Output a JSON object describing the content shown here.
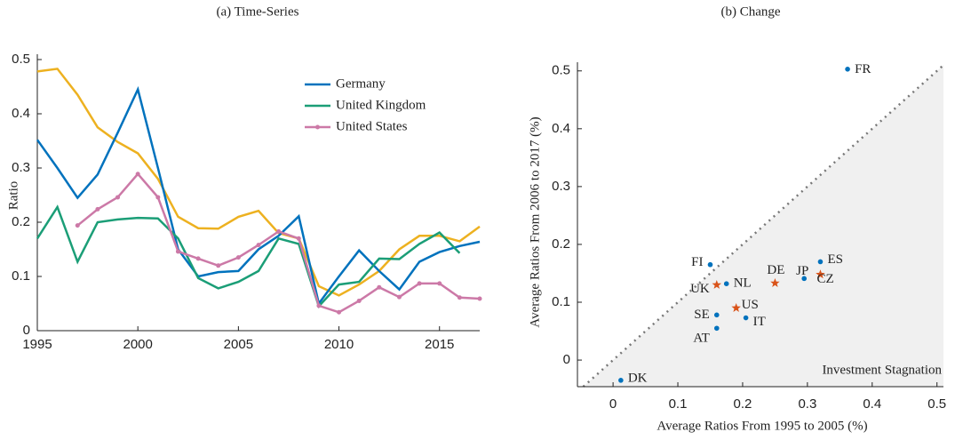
{
  "chart_data": [
    {
      "type": "line",
      "title": "(a) Time-Series",
      "y_label": "Ratio",
      "x": [
        1995,
        1996,
        1997,
        1998,
        1999,
        2000,
        2001,
        2002,
        2003,
        2004,
        2005,
        2006,
        2007,
        2008,
        2009,
        2010,
        2011,
        2012,
        2013,
        2014,
        2015,
        2016,
        2017
      ],
      "xlim": [
        1995,
        2017
      ],
      "xticks": [
        1995,
        2000,
        2005,
        2010,
        2015
      ],
      "ylim": [
        0,
        0.5
      ],
      "yticks": [
        0,
        0.1,
        0.2,
        0.3,
        0.4,
        0.5
      ],
      "legend": "upper-right",
      "series": [
        {
          "color": "#edb120",
          "values": [
            0.478,
            0.483,
            0.435,
            0.375,
            0.348,
            0.327,
            0.28,
            0.21,
            0.189,
            0.188,
            0.21,
            0.221,
            0.18,
            0.17,
            0.082,
            0.065,
            0.085,
            0.11,
            0.15,
            0.175,
            0.175,
            0.165,
            0.192
          ]
        },
        {
          "name": "Germany",
          "color": "#0072bd",
          "values": [
            0.352,
            0.3,
            0.245,
            0.288,
            0.365,
            0.445,
            0.3,
            0.15,
            0.1,
            0.108,
            0.11,
            0.15,
            0.175,
            0.211,
            0.05,
            0.1,
            0.148,
            0.11,
            0.076,
            0.127,
            0.145,
            0.156,
            0.164
          ]
        },
        {
          "name": "United Kingdom",
          "color": "#1b9e77",
          "values": [
            0.17,
            0.228,
            0.127,
            0.2,
            0.205,
            0.208,
            0.207,
            0.17,
            0.097,
            0.078,
            0.09,
            0.11,
            0.17,
            0.16,
            0.045,
            0.085,
            0.09,
            0.133,
            0.132,
            0.16,
            0.181,
            0.143,
            null
          ]
        },
        {
          "name": "United States",
          "color": "#cc79a7",
          "marker": true,
          "values": [
            null,
            null,
            0.194,
            0.224,
            0.246,
            0.289,
            0.246,
            0.146,
            0.133,
            0.12,
            0.135,
            0.158,
            0.183,
            0.17,
            0.046,
            0.034,
            0.055,
            0.08,
            0.062,
            0.087,
            0.087,
            0.061,
            0.059
          ]
        }
      ]
    },
    {
      "type": "scatter",
      "title": "(b) Change",
      "x_label": "Average Ratios From 1995 to 2005 (%)",
      "y_label": "Average Ratios From 2006 to 2017 (%)",
      "annotation": "Investment Stagnation",
      "xlim": [
        -0.055,
        0.51
      ],
      "xticks": [
        0,
        0.1,
        0.2,
        0.3,
        0.4,
        0.5
      ],
      "ylim": [
        -0.046,
        0.515
      ],
      "yticks": [
        0,
        0.1,
        0.2,
        0.3,
        0.4,
        0.5
      ],
      "series": [
        {
          "color": "#0072bd",
          "marker": "circle",
          "labels": [
            "FR",
            "ES",
            "JP",
            "FI",
            "NL",
            "SE",
            "AT",
            "IT",
            "DK"
          ],
          "x": [
            0.362,
            0.32,
            0.295,
            0.15,
            0.175,
            0.16,
            0.16,
            0.205,
            0.012
          ],
          "values": [
            0.503,
            0.17,
            0.141,
            0.165,
            0.132,
            0.078,
            0.055,
            0.073,
            -0.035
          ]
        },
        {
          "color": "#d95319",
          "marker": "star",
          "labels": [
            "CZ",
            "DE",
            "UK",
            "US"
          ],
          "x": [
            0.32,
            0.25,
            0.16,
            0.19
          ],
          "values": [
            0.148,
            0.133,
            0.13,
            0.09
          ]
        }
      ]
    }
  ]
}
